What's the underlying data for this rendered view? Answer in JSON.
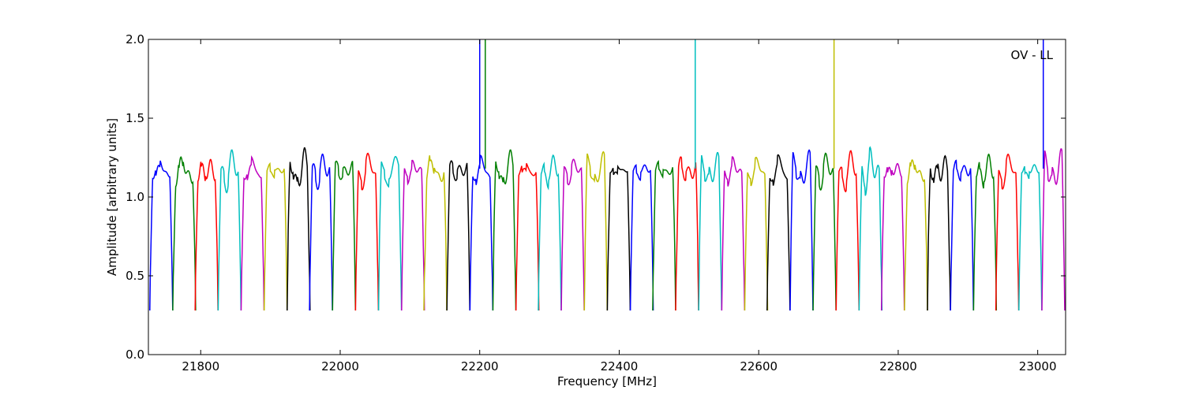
{
  "chart_data": {
    "type": "line",
    "title": "",
    "annotation": "OV - LL",
    "xlabel": "Frequency [MHz]",
    "ylabel": "Amplitude [arbitrary units]",
    "xlim": [
      21725,
      23040
    ],
    "ylim": [
      0.0,
      2.0
    ],
    "xticks": [
      21800,
      22000,
      22200,
      22400,
      22600,
      22800,
      23000
    ],
    "yticks": [
      0.0,
      0.5,
      1.0,
      1.5,
      2.0
    ],
    "xtick_labels": [
      "21800",
      "22000",
      "22200",
      "22400",
      "22600",
      "22800",
      "23000"
    ],
    "ytick_labels": [
      "0.0",
      "0.5",
      "1.0",
      "1.5",
      "2.0"
    ],
    "grid": false,
    "legend": "none",
    "color_cycle": [
      "#0000ff",
      "#007f00",
      "#ff0000",
      "#00bfbf",
      "#bf00bf",
      "#bfbf00",
      "#000000"
    ],
    "band_width_mhz": 32.8,
    "band_edges_mhz": [
      21727,
      21760,
      21792,
      21825,
      21858,
      21891,
      21924,
      21956,
      21989,
      22022,
      22055,
      22088,
      22120,
      22153,
      22186,
      22219,
      22252,
      22284,
      22317,
      22350,
      22383,
      22416,
      22448,
      22481,
      22514,
      22547,
      22580,
      22612,
      22645,
      22678,
      22711,
      22744,
      22776,
      22809,
      22842,
      22875,
      22908,
      22940,
      22973,
      23006
    ],
    "typical_passband_level": 1.18,
    "typical_band_edge_level": 0.28,
    "spikes": [
      {
        "x": 22200,
        "y": 2.0,
        "color": "#0000ff"
      },
      {
        "x": 22208,
        "y": 2.0,
        "color": "#007f00"
      },
      {
        "x": 22509,
        "y": 2.0,
        "color": "#00bfbf"
      },
      {
        "x": 22708,
        "y": 2.0,
        "color": "#bfbf00"
      },
      {
        "x": 23008,
        "y": 2.0,
        "color": "#0000ff"
      }
    ]
  }
}
